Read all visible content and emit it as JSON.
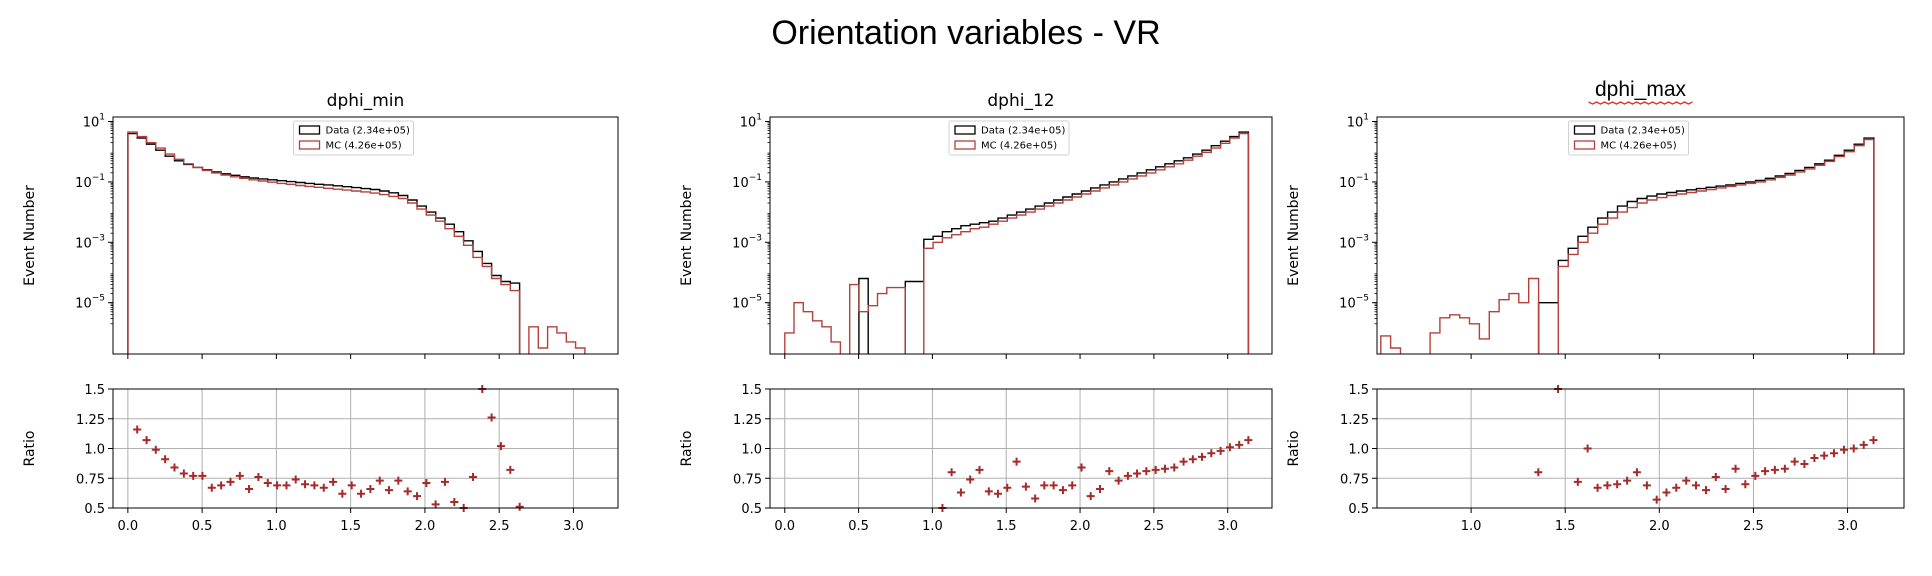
{
  "figure_title": "Orientation variables - VR",
  "colors": {
    "data": "#000000",
    "mc": "#b5403a",
    "ratio": "#a52a2a",
    "grid": "#b0b0b0"
  },
  "chart_data": [
    {
      "type": "histogram",
      "title": "dphi_min",
      "ylabel": "Event Number",
      "yscale": "log",
      "xlim": [
        -0.1,
        3.3
      ],
      "ylim_exp": [
        -6.7,
        1.15
      ],
      "yticks_exp": [
        1,
        -1,
        -3,
        -5
      ],
      "legend": [
        {
          "label": "Data (2.34e+05)",
          "series": "data"
        },
        {
          "label": "MC (4.26e+05)",
          "series": "mc"
        }
      ],
      "legend_position": "upper center",
      "bins": {
        "start": 0.0,
        "step": 0.0628,
        "count": 50
      },
      "data_log10": [
        0.6,
        0.45,
        0.25,
        0.05,
        -0.15,
        -0.3,
        -0.42,
        -0.52,
        -0.6,
        -0.67,
        -0.73,
        -0.78,
        -0.83,
        -0.87,
        -0.9,
        -0.93,
        -0.96,
        -0.99,
        -1.02,
        -1.05,
        -1.08,
        -1.1,
        -1.13,
        -1.16,
        -1.19,
        -1.22,
        -1.25,
        -1.3,
        -1.36,
        -1.45,
        -1.6,
        -1.8,
        -2.0,
        -2.2,
        -2.4,
        -2.65,
        -2.95,
        -3.3,
        -3.7,
        -4.1,
        -4.3,
        -4.35,
        null,
        null,
        null,
        null,
        null,
        null,
        null,
        null
      ],
      "mc_log10": [
        0.65,
        0.5,
        0.3,
        0.12,
        -0.08,
        -0.25,
        -0.4,
        -0.52,
        -0.62,
        -0.7,
        -0.77,
        -0.83,
        -0.88,
        -0.93,
        -0.97,
        -1.01,
        -1.05,
        -1.08,
        -1.12,
        -1.15,
        -1.18,
        -1.21,
        -1.24,
        -1.27,
        -1.3,
        -1.33,
        -1.37,
        -1.42,
        -1.48,
        -1.55,
        -1.7,
        -1.9,
        -2.1,
        -2.3,
        -2.55,
        -2.8,
        -3.1,
        -3.5,
        -3.8,
        -4.2,
        -4.4,
        -4.6,
        null,
        -5.8,
        -6.5,
        -5.8,
        -6.0,
        -6.3,
        -6.5,
        null
      ],
      "ratio": {
        "ylabel": "Ratio",
        "ylim": [
          0.5,
          1.5
        ],
        "yticks": [
          0.5,
          0.75,
          1.0,
          1.25,
          1.5
        ],
        "xticks": [
          0.0,
          0.5,
          1.0,
          1.5,
          2.0,
          2.5,
          3.0
        ],
        "points_x": [
          0.063,
          0.126,
          0.188,
          0.251,
          0.314,
          0.377,
          0.44,
          0.502,
          0.565,
          0.628,
          0.691,
          0.754,
          0.816,
          0.879,
          0.942,
          1.005,
          1.068,
          1.13,
          1.193,
          1.256,
          1.319,
          1.382,
          1.444,
          1.507,
          1.57,
          1.633,
          1.696,
          1.758,
          1.821,
          1.884,
          1.947,
          2.01,
          2.072,
          2.135,
          2.198,
          2.261,
          2.324,
          2.386,
          2.449,
          2.512,
          2.575,
          2.638
        ],
        "points_y": [
          1.16,
          1.07,
          0.99,
          0.91,
          0.84,
          0.79,
          0.77,
          0.77,
          0.67,
          0.69,
          0.72,
          0.77,
          0.66,
          0.76,
          0.71,
          0.69,
          0.69,
          0.74,
          0.7,
          0.69,
          0.67,
          0.72,
          0.62,
          0.69,
          0.62,
          0.66,
          0.73,
          0.65,
          0.73,
          0.64,
          0.6,
          0.71,
          0.53,
          0.72,
          0.55,
          0.5,
          0.76,
          1.5,
          1.26,
          1.02,
          0.82,
          0.51
        ]
      }
    },
    {
      "type": "histogram",
      "title": "dphi_12",
      "ylabel": "Event Number",
      "yscale": "log",
      "xlim": [
        -0.1,
        3.3
      ],
      "ylim_exp": [
        -6.7,
        1.15
      ],
      "yticks_exp": [
        1,
        -1,
        -3,
        -5
      ],
      "legend": [
        {
          "label": "Data (2.34e+05)",
          "series": "data"
        },
        {
          "label": "MC (4.26e+05)",
          "series": "mc"
        }
      ],
      "legend_position": "upper center",
      "bins": {
        "start": 0.0,
        "step": 0.0628,
        "count": 50
      },
      "data_log10": [
        null,
        null,
        null,
        null,
        null,
        null,
        null,
        null,
        -4.2,
        null,
        null,
        null,
        null,
        -4.3,
        -4.3,
        -2.9,
        -2.8,
        -2.65,
        -2.55,
        -2.45,
        -2.4,
        -2.35,
        -2.3,
        -2.2,
        -2.1,
        -2.0,
        -1.9,
        -1.8,
        -1.7,
        -1.6,
        -1.5,
        -1.4,
        -1.3,
        -1.2,
        -1.1,
        -1.0,
        -0.9,
        -0.8,
        -0.7,
        -0.6,
        -0.5,
        -0.4,
        -0.3,
        -0.2,
        -0.08,
        0.05,
        0.2,
        0.35,
        0.5,
        0.65
      ],
      "mc_log10": [
        -6.0,
        -5.0,
        -5.3,
        -5.6,
        -5.8,
        -6.3,
        null,
        -4.4,
        -5.3,
        -5.1,
        -4.7,
        -4.5,
        -4.5,
        null,
        null,
        -3.2,
        -3.0,
        -2.85,
        -2.75,
        -2.65,
        -2.55,
        -2.5,
        -2.4,
        -2.3,
        -2.2,
        -2.1,
        -2.0,
        -1.9,
        -1.8,
        -1.7,
        -1.6,
        -1.5,
        -1.4,
        -1.3,
        -1.2,
        -1.1,
        -1.0,
        -0.9,
        -0.8,
        -0.7,
        -0.6,
        -0.5,
        -0.4,
        -0.28,
        -0.15,
        -0.02,
        0.12,
        0.28,
        0.45,
        0.6
      ],
      "ratio": {
        "ylabel": "Ratio",
        "ylim": [
          0.5,
          1.5
        ],
        "yticks": [
          0.5,
          0.75,
          1.0,
          1.25,
          1.5
        ],
        "xticks": [
          0.0,
          0.5,
          1.0,
          1.5,
          2.0,
          2.5,
          3.0
        ],
        "points_x": [
          1.068,
          1.13,
          1.193,
          1.256,
          1.319,
          1.382,
          1.444,
          1.507,
          1.57,
          1.633,
          1.696,
          1.758,
          1.821,
          1.884,
          1.947,
          2.01,
          2.072,
          2.135,
          2.198,
          2.261,
          2.324,
          2.386,
          2.449,
          2.512,
          2.575,
          2.638,
          2.701,
          2.764,
          2.826,
          2.889,
          2.952,
          3.015,
          3.078,
          3.14
        ],
        "points_y": [
          0.5,
          0.8,
          0.63,
          0.74,
          0.82,
          0.64,
          0.62,
          0.67,
          0.89,
          0.68,
          0.58,
          0.69,
          0.69,
          0.65,
          0.69,
          0.84,
          0.6,
          0.66,
          0.81,
          0.73,
          0.77,
          0.79,
          0.81,
          0.82,
          0.83,
          0.84,
          0.89,
          0.91,
          0.93,
          0.96,
          0.98,
          1.01,
          1.03,
          1.07
        ]
      }
    },
    {
      "type": "histogram",
      "title": "dphi_max",
      "ylabel": "Event Number",
      "yscale": "log",
      "xlim": [
        0.5,
        3.3
      ],
      "ylim_exp": [
        -6.7,
        1.15
      ],
      "yticks_exp": [
        1,
        -1,
        -3,
        -5
      ],
      "legend": [
        {
          "label": "Data (2.34e+05)",
          "series": "data"
        },
        {
          "label": "MC (4.26e+05)",
          "series": "mc"
        }
      ],
      "legend_position": "upper center",
      "bins": {
        "start": 0.52,
        "step": 0.0524,
        "count": 50
      },
      "data_log10": [
        null,
        null,
        null,
        null,
        null,
        null,
        null,
        null,
        null,
        null,
        null,
        null,
        null,
        null,
        null,
        null,
        -5.0,
        -5.0,
        -3.6,
        -3.2,
        -2.8,
        -2.5,
        -2.2,
        -2.0,
        -1.8,
        -1.65,
        -1.55,
        -1.47,
        -1.4,
        -1.35,
        -1.3,
        -1.26,
        -1.22,
        -1.18,
        -1.14,
        -1.1,
        -1.05,
        -1.0,
        -0.95,
        -0.88,
        -0.8,
        -0.72,
        -0.62,
        -0.52,
        -0.4,
        -0.28,
        -0.12,
        0.05,
        0.25,
        0.45
      ],
      "mc_log10": [
        -6.1,
        -6.5,
        null,
        null,
        null,
        -6.0,
        -5.5,
        -5.4,
        -5.5,
        -5.7,
        -6.2,
        -5.3,
        -4.9,
        -4.7,
        -5.0,
        -4.2,
        null,
        null,
        -3.8,
        -3.4,
        -3.0,
        -2.7,
        -2.4,
        -2.2,
        -2.0,
        -1.85,
        -1.7,
        -1.6,
        -1.52,
        -1.45,
        -1.4,
        -1.35,
        -1.3,
        -1.25,
        -1.2,
        -1.15,
        -1.1,
        -1.05,
        -1.0,
        -0.93,
        -0.85,
        -0.77,
        -0.67,
        -0.57,
        -0.45,
        -0.32,
        -0.16,
        0.0,
        0.2,
        0.4
      ],
      "ratio": {
        "ylabel": "Ratio",
        "ylim": [
          0.5,
          1.5
        ],
        "yticks": [
          0.5,
          0.75,
          1.0,
          1.25,
          1.5
        ],
        "xticks": [
          1.0,
          1.5,
          2.0,
          2.5,
          3.0
        ],
        "points_x": [
          1.357,
          1.462,
          1.567,
          1.619,
          1.672,
          1.724,
          1.776,
          1.829,
          1.881,
          1.934,
          1.986,
          2.038,
          2.09,
          2.143,
          2.195,
          2.248,
          2.3,
          2.352,
          2.405,
          2.457,
          2.51,
          2.562,
          2.614,
          2.667,
          2.719,
          2.771,
          2.824,
          2.876,
          2.928,
          2.981,
          3.033,
          3.086,
          3.138
        ],
        "points_y": [
          0.8,
          1.5,
          0.72,
          1.0,
          0.67,
          0.69,
          0.7,
          0.73,
          0.8,
          0.69,
          0.57,
          0.63,
          0.67,
          0.73,
          0.69,
          0.65,
          0.76,
          0.66,
          0.83,
          0.7,
          0.77,
          0.81,
          0.82,
          0.83,
          0.89,
          0.87,
          0.92,
          0.94,
          0.96,
          0.99,
          1.0,
          1.03,
          1.07
        ]
      }
    }
  ]
}
